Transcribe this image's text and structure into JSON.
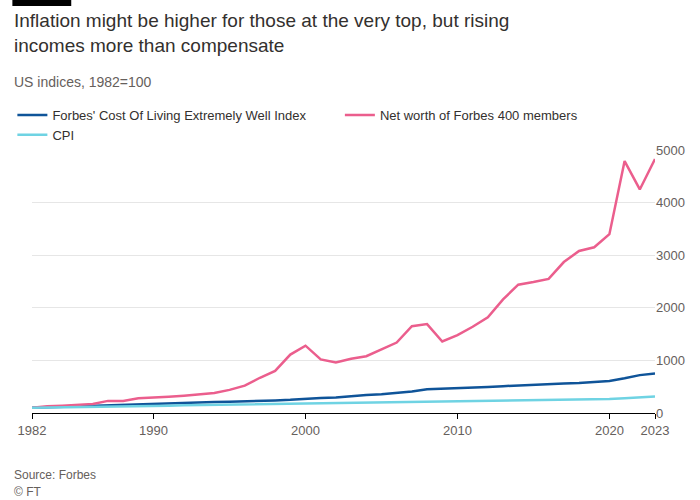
{
  "chart_data": {
    "type": "line",
    "title": "Inflation might be higher for those at the very top, but rising incomes more than compensate",
    "subtitle": "US indices, 1982=100",
    "source": "Source: Forbes",
    "credit": "© FT",
    "x": [
      1982,
      1983,
      1984,
      1985,
      1986,
      1987,
      1988,
      1989,
      1990,
      1991,
      1992,
      1993,
      1994,
      1995,
      1996,
      1997,
      1998,
      1999,
      2000,
      2001,
      2002,
      2003,
      2004,
      2005,
      2006,
      2007,
      2008,
      2009,
      2010,
      2011,
      2012,
      2013,
      2014,
      2015,
      2016,
      2017,
      2018,
      2019,
      2020,
      2021,
      2022,
      2023
    ],
    "series": [
      {
        "name": "Forbes' Cost Of Living Extremely Well Index",
        "color": "#0f5499",
        "values": [
          100,
          110,
          120,
          125,
          135,
          145,
          150,
          160,
          175,
          190,
          195,
          200,
          210,
          215,
          220,
          225,
          240,
          250,
          270,
          285,
          295,
          320,
          340,
          355,
          380,
          410,
          450,
          460,
          465,
          480,
          495,
          510,
          525,
          540,
          550,
          560,
          570,
          590,
          610,
          660,
          720,
          750
        ]
      },
      {
        "name": "Net worth of Forbes 400 members",
        "color": "#eb5e8d",
        "values": [
          100,
          130,
          140,
          150,
          170,
          230,
          230,
          280,
          290,
          310,
          330,
          360,
          380,
          440,
          520,
          670,
          800,
          1110,
          1280,
          1020,
          960,
          1030,
          1080,
          1210,
          1340,
          1650,
          1690,
          1360,
          1480,
          1640,
          1820,
          2160,
          2440,
          2490,
          2550,
          2870,
          3080,
          3150,
          3400,
          4790,
          4250,
          4830
        ]
      },
      {
        "name": "CPI",
        "color": "#6fd3e3",
        "values": [
          100,
          103,
          108,
          111,
          113,
          117,
          122,
          128,
          135,
          140,
          145,
          149,
          153,
          157,
          162,
          166,
          168,
          172,
          178,
          183,
          186,
          190,
          195,
          202,
          208,
          214,
          222,
          221,
          225,
          232,
          237,
          240,
          244,
          244,
          247,
          253,
          259,
          264,
          267,
          280,
          302,
          314
        ]
      }
    ],
    "xlim": [
      1982,
      2023
    ],
    "xticks": [
      1982,
      1990,
      2000,
      2010,
      2020,
      2023
    ],
    "ylim": [
      0,
      5000
    ],
    "yticks": [
      0,
      1000,
      2000,
      3000,
      4000,
      5000
    ],
    "grid": true,
    "legend": "top-left"
  }
}
